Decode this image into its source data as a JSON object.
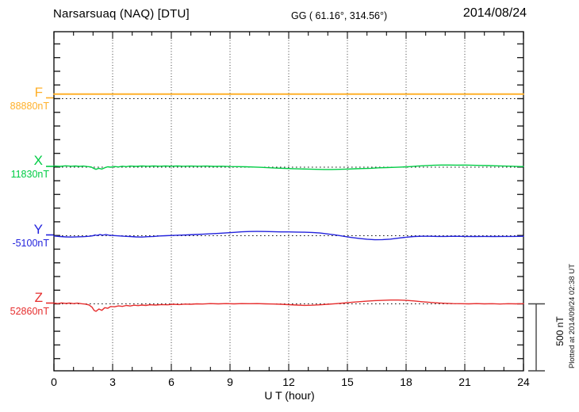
{
  "header": {
    "station_title": "Narsarsuaq (NAQ)  [DTU]",
    "gg_coords": "GG ( 61.16°, 314.56°)",
    "date": "2014/08/24"
  },
  "x_axis": {
    "label": "U T (hour)",
    "tick_labels": [
      "0",
      "3",
      "6",
      "9",
      "12",
      "15",
      "18",
      "21",
      "24"
    ],
    "min": 0,
    "max": 24,
    "minor_step_hours": 1,
    "major_step_hours": 3
  },
  "scale_bar": {
    "label": "500 nT",
    "nanotesla": 500
  },
  "plotted_at": "Plotted at 2014/09/24 02:38 UT",
  "chart_data": {
    "type": "line",
    "title": "Narsarsuaq (NAQ) [DTU] magnetogram 2014/08/24",
    "xlabel": "U T (hour)",
    "x_range": [
      0,
      24
    ],
    "grid": "dotted vertical gridlines every 3 hours; dotted horizontal baseline per trace",
    "legend_position": "left of each trace",
    "amplitude_scale": "500 nT reference bar at lower right",
    "series": [
      {
        "name": "F",
        "baseline_label": "88880nT",
        "color": "#FFB02A",
        "points_hour_devnT": [
          [
            0,
            34
          ],
          [
            6,
            34
          ],
          [
            12,
            34
          ],
          [
            18,
            34
          ],
          [
            24,
            34
          ]
        ]
      },
      {
        "name": "X",
        "baseline_label": "11830nT",
        "color": "#00CC44",
        "points_hour_devnT": [
          [
            0,
            9
          ],
          [
            0.3,
            6
          ],
          [
            0.6,
            10
          ],
          [
            0.9,
            7
          ],
          [
            1.1,
            9
          ],
          [
            1.3,
            6
          ],
          [
            1.5,
            8
          ],
          [
            1.7,
            5
          ],
          [
            1.9,
            2
          ],
          [
            2.05,
            -10
          ],
          [
            2.15,
            -16
          ],
          [
            2.3,
            -8
          ],
          [
            2.45,
            -14
          ],
          [
            2.6,
            -4
          ],
          [
            2.75,
            3
          ],
          [
            2.9,
            0
          ],
          [
            3.1,
            5
          ],
          [
            3.3,
            2
          ],
          [
            3.5,
            7
          ],
          [
            3.7,
            4
          ],
          [
            3.9,
            8
          ],
          [
            4.2,
            6
          ],
          [
            4.5,
            9
          ],
          [
            4.8,
            7
          ],
          [
            5.1,
            9
          ],
          [
            5.4,
            7
          ],
          [
            5.7,
            9
          ],
          [
            6,
            7
          ],
          [
            6.3,
            9
          ],
          [
            6.6,
            7
          ],
          [
            7,
            8
          ],
          [
            7.4,
            7
          ],
          [
            7.8,
            8
          ],
          [
            8.2,
            6
          ],
          [
            8.6,
            7
          ],
          [
            9,
            5
          ],
          [
            9.4,
            4
          ],
          [
            9.8,
            3
          ],
          [
            10.2,
            1
          ],
          [
            10.6,
            -1
          ],
          [
            11,
            -4
          ],
          [
            11.4,
            -7
          ],
          [
            11.8,
            -9
          ],
          [
            12.2,
            -11
          ],
          [
            12.6,
            -13
          ],
          [
            13,
            -14
          ],
          [
            13.4,
            -16
          ],
          [
            13.8,
            -17
          ],
          [
            14.2,
            -17
          ],
          [
            14.6,
            -16
          ],
          [
            15,
            -14
          ],
          [
            15.4,
            -12
          ],
          [
            15.8,
            -10
          ],
          [
            16.2,
            -8
          ],
          [
            16.6,
            -5
          ],
          [
            17,
            -3
          ],
          [
            17.4,
            -1
          ],
          [
            17.8,
            1
          ],
          [
            18.2,
            4
          ],
          [
            18.6,
            8
          ],
          [
            19,
            11
          ],
          [
            19.4,
            14
          ],
          [
            19.8,
            16
          ],
          [
            20.2,
            16
          ],
          [
            20.6,
            15
          ],
          [
            21,
            16
          ],
          [
            21.4,
            14
          ],
          [
            21.8,
            13
          ],
          [
            22.2,
            12
          ],
          [
            22.6,
            10
          ],
          [
            23,
            8
          ],
          [
            23.4,
            7
          ],
          [
            23.8,
            5
          ],
          [
            24,
            5
          ]
        ]
      },
      {
        "name": "Y",
        "baseline_label": "-5100nT",
        "color": "#2222DD",
        "points_hour_devnT": [
          [
            0,
            -2
          ],
          [
            0.3,
            -6
          ],
          [
            0.6,
            -9
          ],
          [
            0.9,
            -10
          ],
          [
            1.2,
            -8
          ],
          [
            1.5,
            -7
          ],
          [
            1.8,
            -4
          ],
          [
            2,
            0
          ],
          [
            2.1,
            6
          ],
          [
            2.2,
            2
          ],
          [
            2.35,
            8
          ],
          [
            2.5,
            4
          ],
          [
            2.65,
            9
          ],
          [
            2.8,
            4
          ],
          [
            3,
            2
          ],
          [
            3.3,
            -1
          ],
          [
            3.6,
            -4
          ],
          [
            3.9,
            -6
          ],
          [
            4.2,
            -9
          ],
          [
            4.5,
            -10
          ],
          [
            4.8,
            -7
          ],
          [
            5.1,
            -5
          ],
          [
            5.4,
            -2
          ],
          [
            5.7,
            0
          ],
          [
            6,
            2
          ],
          [
            6.4,
            4
          ],
          [
            6.8,
            6
          ],
          [
            7.2,
            9
          ],
          [
            7.6,
            11
          ],
          [
            8,
            14
          ],
          [
            8.4,
            17
          ],
          [
            8.8,
            21
          ],
          [
            9.2,
            25
          ],
          [
            9.6,
            29
          ],
          [
            10,
            31
          ],
          [
            10.4,
            32
          ],
          [
            10.8,
            31
          ],
          [
            11.2,
            30
          ],
          [
            11.6,
            28
          ],
          [
            12,
            28
          ],
          [
            12.4,
            27
          ],
          [
            12.8,
            26
          ],
          [
            13.2,
            24
          ],
          [
            13.6,
            20
          ],
          [
            14,
            13
          ],
          [
            14.4,
            5
          ],
          [
            14.8,
            -4
          ],
          [
            15.2,
            -13
          ],
          [
            15.6,
            -20
          ],
          [
            16,
            -26
          ],
          [
            16.4,
            -30
          ],
          [
            16.8,
            -29
          ],
          [
            17.2,
            -25
          ],
          [
            17.6,
            -18
          ],
          [
            18,
            -11
          ],
          [
            18.4,
            -6
          ],
          [
            18.8,
            -4
          ],
          [
            19.2,
            -4
          ],
          [
            19.6,
            -5
          ],
          [
            20,
            -5
          ],
          [
            20.5,
            -4
          ],
          [
            21,
            -5
          ],
          [
            21.5,
            -6
          ],
          [
            22,
            -5
          ],
          [
            22.5,
            -6
          ],
          [
            23,
            -5
          ],
          [
            23.5,
            -5
          ],
          [
            24,
            -4
          ]
        ]
      },
      {
        "name": "Z",
        "baseline_label": "52860nT",
        "color": "#E62E2E",
        "points_hour_devnT": [
          [
            0,
            6
          ],
          [
            0.2,
            2
          ],
          [
            0.4,
            7
          ],
          [
            0.6,
            3
          ],
          [
            0.8,
            6
          ],
          [
            1,
            2
          ],
          [
            1.2,
            5
          ],
          [
            1.4,
            1
          ],
          [
            1.6,
            -2
          ],
          [
            1.8,
            -8
          ],
          [
            1.95,
            -25
          ],
          [
            2.05,
            -48
          ],
          [
            2.15,
            -55
          ],
          [
            2.3,
            -38
          ],
          [
            2.45,
            -48
          ],
          [
            2.6,
            -28
          ],
          [
            2.75,
            -33
          ],
          [
            2.9,
            -20
          ],
          [
            3.1,
            -22
          ],
          [
            3.3,
            -15
          ],
          [
            3.5,
            -19
          ],
          [
            3.7,
            -12
          ],
          [
            3.9,
            -16
          ],
          [
            4.1,
            -10
          ],
          [
            4.3,
            -13
          ],
          [
            4.5,
            -9
          ],
          [
            4.7,
            -12
          ],
          [
            4.9,
            -7
          ],
          [
            5.2,
            -9
          ],
          [
            5.5,
            -5
          ],
          [
            5.8,
            -7
          ],
          [
            6.1,
            -3
          ],
          [
            6.4,
            -5
          ],
          [
            6.7,
            -2
          ],
          [
            7,
            -3
          ],
          [
            7.3,
            0
          ],
          [
            7.6,
            -1
          ],
          [
            8,
            2
          ],
          [
            8.4,
            0
          ],
          [
            8.8,
            2
          ],
          [
            9.2,
            0
          ],
          [
            9.6,
            2
          ],
          [
            10,
            1
          ],
          [
            10.4,
            2
          ],
          [
            10.8,
            0
          ],
          [
            11.2,
            -1
          ],
          [
            11.6,
            -3
          ],
          [
            12,
            -6
          ],
          [
            12.4,
            -9
          ],
          [
            12.8,
            -11
          ],
          [
            13.2,
            -10
          ],
          [
            13.6,
            -7
          ],
          [
            14,
            -3
          ],
          [
            14.4,
            1
          ],
          [
            14.8,
            6
          ],
          [
            15.2,
            11
          ],
          [
            15.6,
            16
          ],
          [
            16,
            20
          ],
          [
            16.4,
            24
          ],
          [
            16.8,
            26
          ],
          [
            17.2,
            28
          ],
          [
            17.6,
            28
          ],
          [
            18,
            26
          ],
          [
            18.4,
            22
          ],
          [
            18.8,
            16
          ],
          [
            19.2,
            11
          ],
          [
            19.6,
            7
          ],
          [
            20,
            4
          ],
          [
            20.4,
            2
          ],
          [
            20.8,
            1
          ],
          [
            21.2,
            0
          ],
          [
            21.6,
            2
          ],
          [
            22,
            0
          ],
          [
            22.4,
            1
          ],
          [
            22.8,
            -1
          ],
          [
            23.2,
            1
          ],
          [
            23.6,
            0
          ],
          [
            24,
            1
          ]
        ]
      }
    ]
  }
}
